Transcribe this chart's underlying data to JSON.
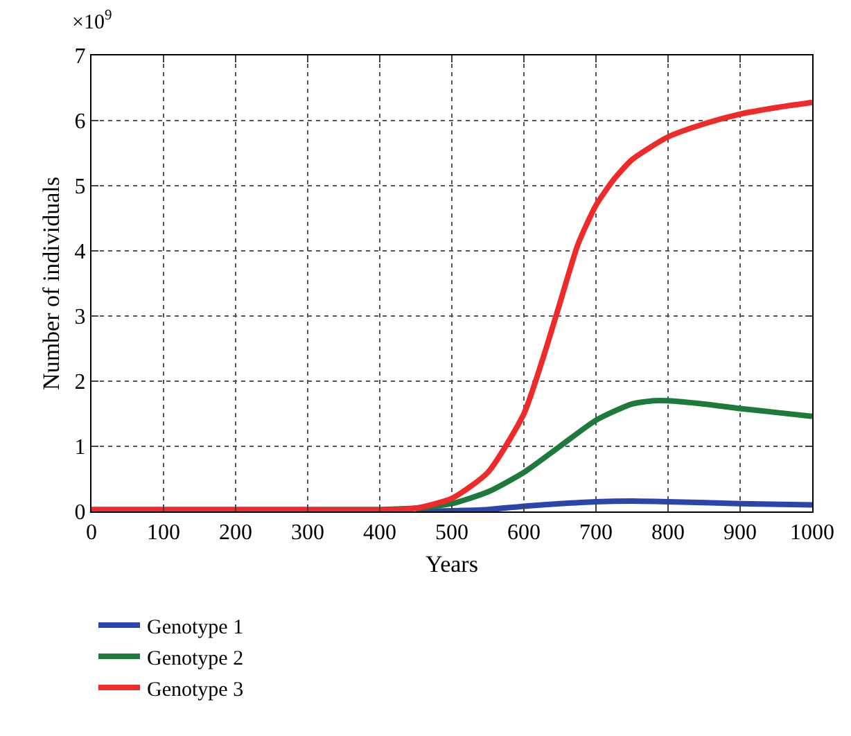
{
  "chart_data": {
    "type": "line",
    "xlabel": "Years",
    "ylabel": "Number of individuals",
    "annotations": [
      "×10$^{9}$"
    ],
    "xlim": [
      0,
      1000
    ],
    "xticks": [
      0,
      100,
      200,
      300,
      400,
      500,
      600,
      700,
      800,
      900,
      1000
    ],
    "ylim": [
      0,
      7
    ],
    "yticks": [
      0,
      1,
      2,
      3,
      4,
      5,
      6,
      7
    ],
    "grid": true,
    "legend": "bottom",
    "series": [
      {
        "name": "Genotype 1",
        "color": "#2b46a8",
        "x": [
          450,
          500,
          550,
          600,
          650,
          700,
          750,
          800,
          900,
          1000
        ],
        "values": [
          0,
          0.01,
          0.03,
          0.08,
          0.12,
          0.15,
          0.16,
          0.15,
          0.12,
          0.1
        ]
      },
      {
        "name": "Genotype 2",
        "color": "#1e7a3a",
        "x": [
          0,
          100,
          200,
          300,
          400,
          450,
          500,
          550,
          600,
          650,
          700,
          750,
          780,
          800,
          850,
          900,
          950,
          1000
        ],
        "values": [
          0.03,
          0.03,
          0.03,
          0.03,
          0.03,
          0.05,
          0.12,
          0.3,
          0.6,
          1.0,
          1.4,
          1.65,
          1.7,
          1.7,
          1.65,
          1.58,
          1.52,
          1.46
        ]
      },
      {
        "name": "Genotype 3",
        "color": "#ee2a2a",
        "x": [
          0,
          100,
          200,
          300,
          400,
          450,
          500,
          550,
          600,
          625,
          650,
          675,
          700,
          725,
          750,
          800,
          850,
          900,
          950,
          1000
        ],
        "values": [
          0.02,
          0.02,
          0.02,
          0.02,
          0.02,
          0.05,
          0.2,
          0.6,
          1.5,
          2.3,
          3.2,
          4.1,
          4.7,
          5.1,
          5.4,
          5.75,
          5.95,
          6.1,
          6.2,
          6.28
        ]
      }
    ]
  }
}
